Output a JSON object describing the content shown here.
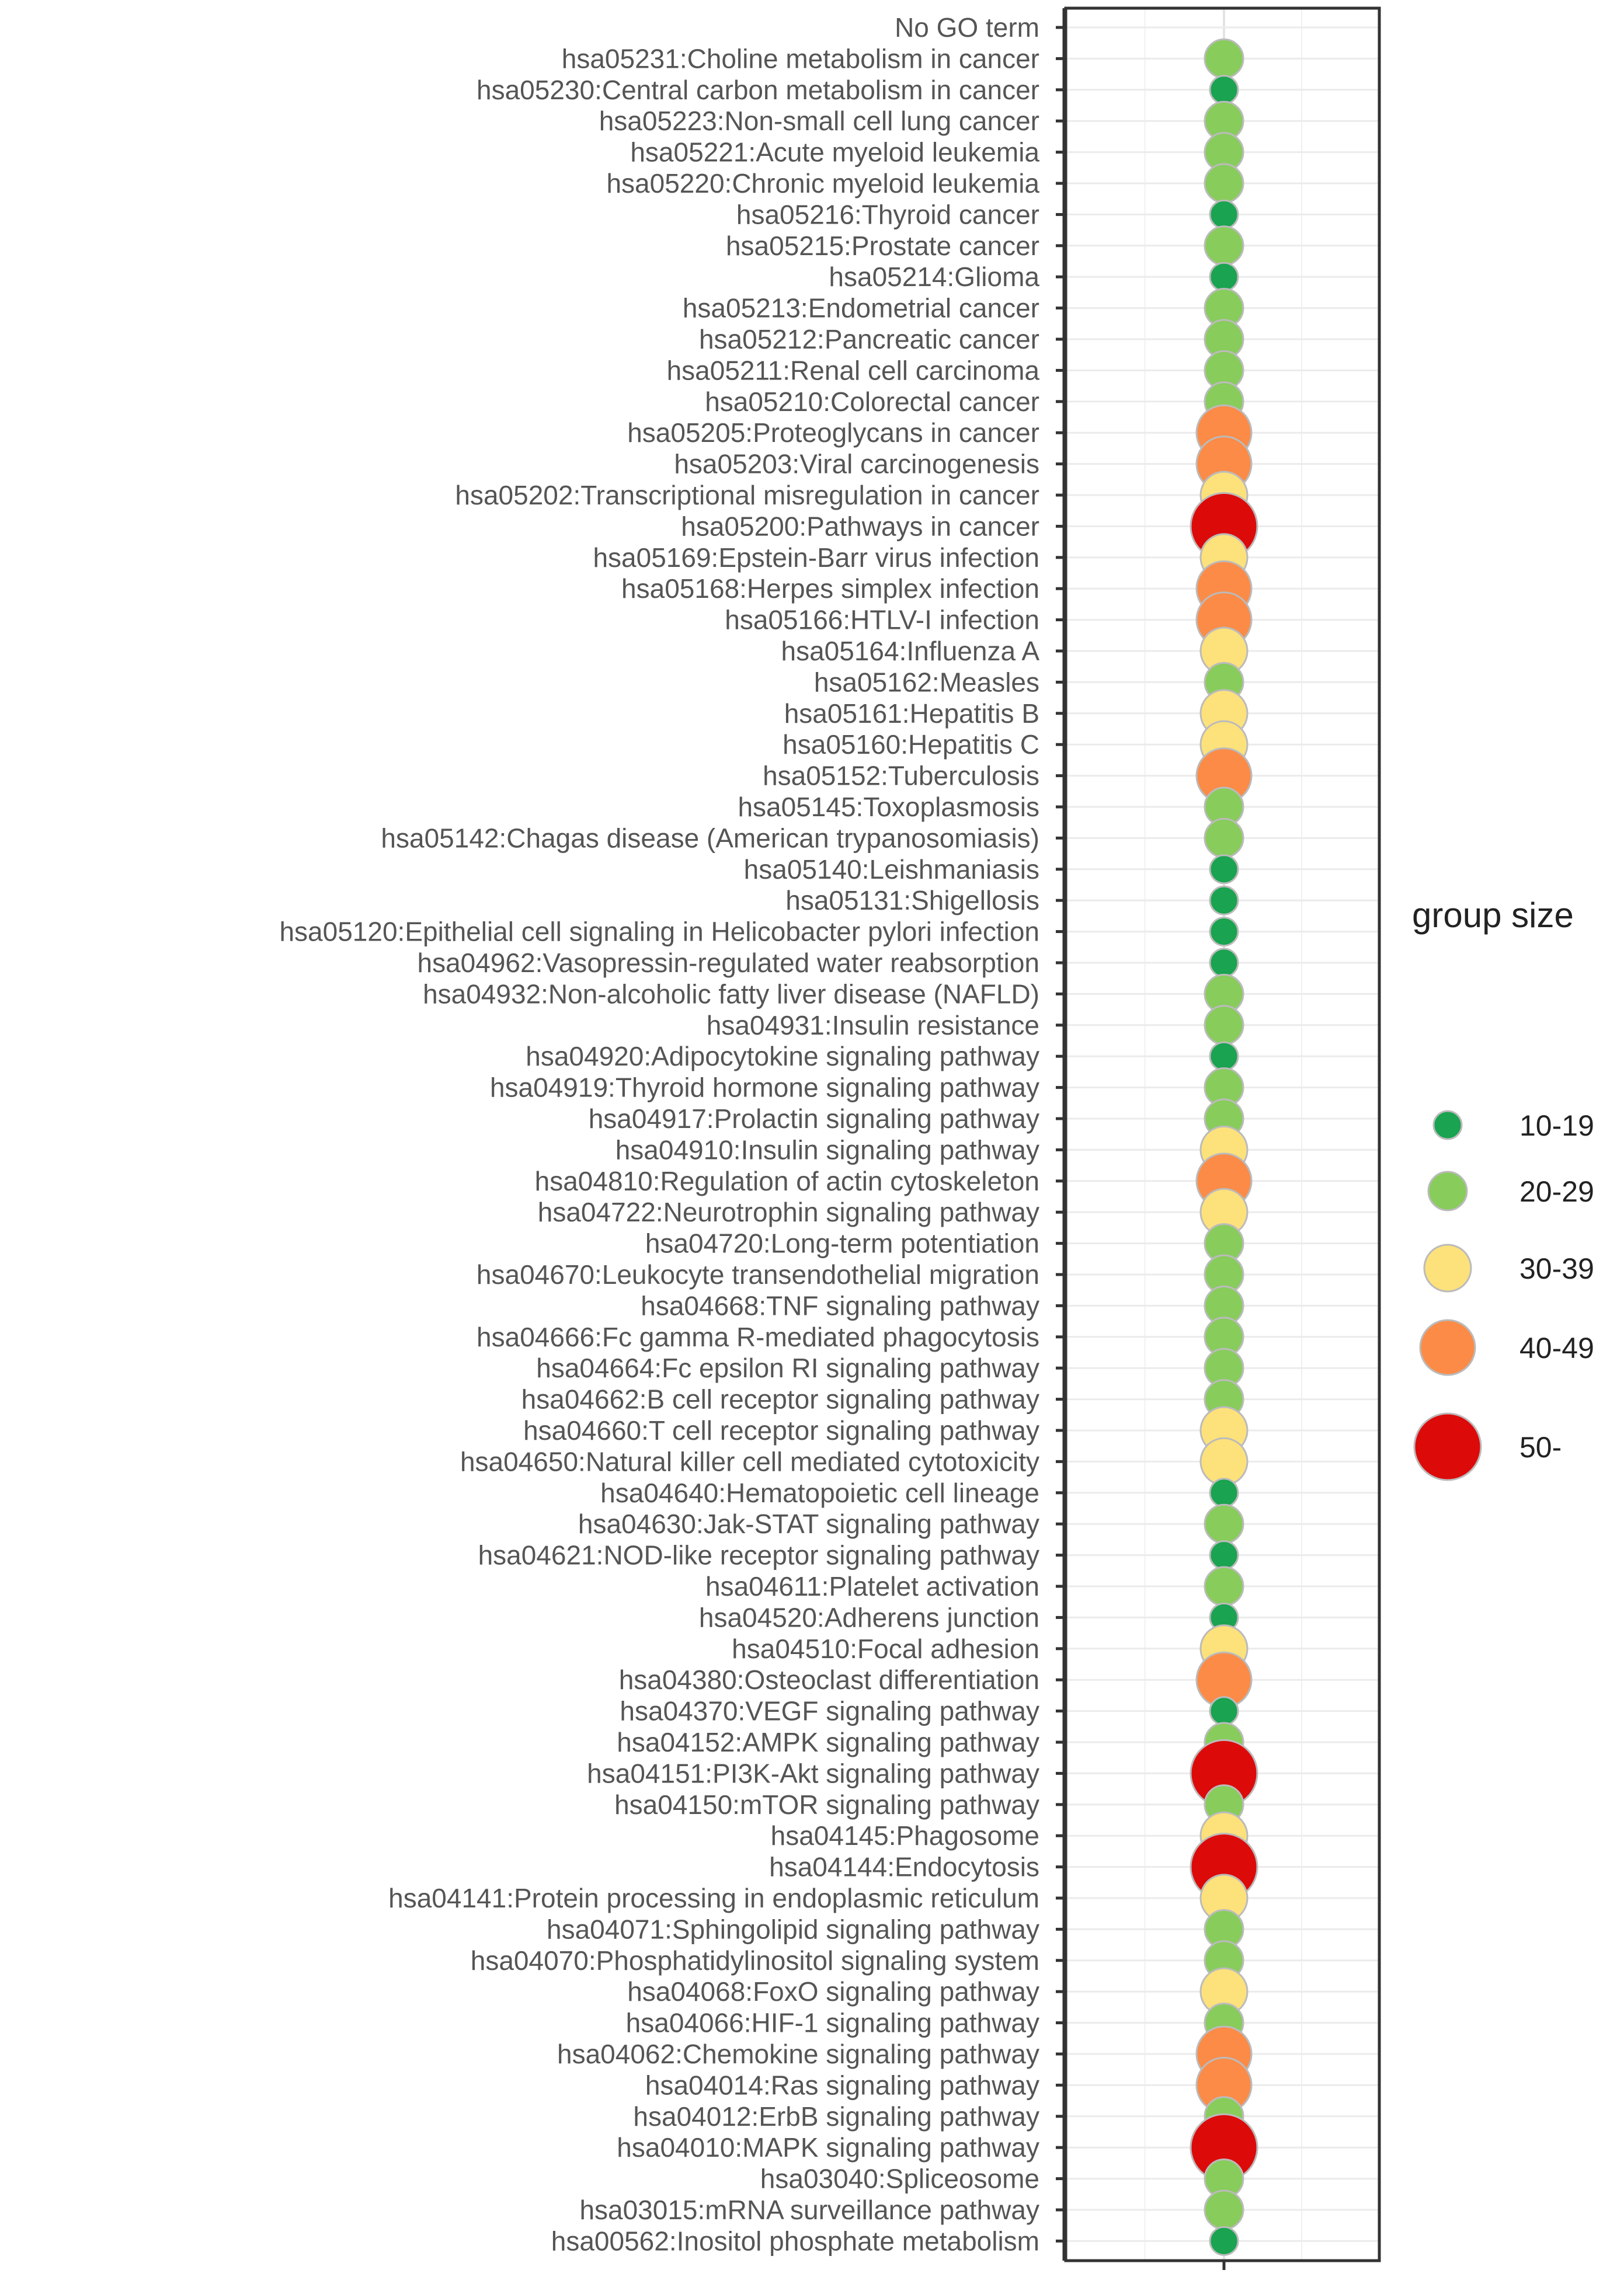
{
  "chart_data": {
    "type": "scatter",
    "title": "",
    "xlabel": "",
    "ylabel": "",
    "categories": [
      "No GO term",
      "hsa05231:Choline metabolism in cancer",
      "hsa05230:Central carbon metabolism in cancer",
      "hsa05223:Non-small cell lung cancer",
      "hsa05221:Acute myeloid leukemia",
      "hsa05220:Chronic myeloid leukemia",
      "hsa05216:Thyroid cancer",
      "hsa05215:Prostate cancer",
      "hsa05214:Glioma",
      "hsa05213:Endometrial cancer",
      "hsa05212:Pancreatic cancer",
      "hsa05211:Renal cell carcinoma",
      "hsa05210:Colorectal cancer",
      "hsa05205:Proteoglycans in cancer",
      "hsa05203:Viral carcinogenesis",
      "hsa05202:Transcriptional misregulation in cancer",
      "hsa05200:Pathways in cancer",
      "hsa05169:Epstein-Barr virus infection",
      "hsa05168:Herpes simplex infection",
      "hsa05166:HTLV-I infection",
      "hsa05164:Influenza A",
      "hsa05162:Measles",
      "hsa05161:Hepatitis B",
      "hsa05160:Hepatitis C",
      "hsa05152:Tuberculosis",
      "hsa05145:Toxoplasmosis",
      "hsa05142:Chagas disease (American trypanosomiasis)",
      "hsa05140:Leishmaniasis",
      "hsa05131:Shigellosis",
      "hsa05120:Epithelial cell signaling in Helicobacter pylori infection",
      "hsa04962:Vasopressin-regulated water reabsorption",
      "hsa04932:Non-alcoholic fatty liver disease (NAFLD)",
      "hsa04931:Insulin resistance",
      "hsa04920:Adipocytokine signaling pathway",
      "hsa04919:Thyroid hormone signaling pathway",
      "hsa04917:Prolactin signaling pathway",
      "hsa04910:Insulin signaling pathway",
      "hsa04810:Regulation of actin cytoskeleton",
      "hsa04722:Neurotrophin signaling pathway",
      "hsa04720:Long-term potentiation",
      "hsa04670:Leukocyte transendothelial migration",
      "hsa04668:TNF signaling pathway",
      "hsa04666:Fc gamma R-mediated phagocytosis",
      "hsa04664:Fc epsilon RI signaling pathway",
      "hsa04662:B cell receptor signaling pathway",
      "hsa04660:T cell receptor signaling pathway",
      "hsa04650:Natural killer cell mediated cytotoxicity",
      "hsa04640:Hematopoietic cell lineage",
      "hsa04630:Jak-STAT signaling pathway",
      "hsa04621:NOD-like receptor signaling pathway",
      "hsa04611:Platelet activation",
      "hsa04520:Adherens junction",
      "hsa04510:Focal adhesion",
      "hsa04380:Osteoclast differentiation",
      "hsa04370:VEGF signaling pathway",
      "hsa04152:AMPK signaling pathway",
      "hsa04151:PI3K-Akt signaling pathway",
      "hsa04150:mTOR signaling pathway",
      "hsa04145:Phagosome",
      "hsa04144:Endocytosis",
      "hsa04141:Protein processing in endoplasmic reticulum",
      "hsa04071:Sphingolipid signaling pathway",
      "hsa04070:Phosphatidylinositol signaling system",
      "hsa04068:FoxO signaling pathway",
      "hsa04066:HIF-1 signaling pathway",
      "hsa04062:Chemokine signaling pathway",
      "hsa04014:Ras signaling pathway",
      "hsa04012:ErbB signaling pathway",
      "hsa04010:MAPK signaling pathway",
      "hsa03040:Spliceosome",
      "hsa03015:mRNA surveillance pathway",
      "hsa00562:Inositol phosphate metabolism"
    ],
    "group_size": [
      null,
      "20-29",
      "10-19",
      "20-29",
      "20-29",
      "20-29",
      "10-19",
      "20-29",
      "10-19",
      "20-29",
      "20-29",
      "20-29",
      "20-29",
      "40-49",
      "40-49",
      "30-39",
      "50-",
      "30-39",
      "40-49",
      "40-49",
      "30-39",
      "20-29",
      "30-39",
      "30-39",
      "40-49",
      "20-29",
      "20-29",
      "10-19",
      "10-19",
      "10-19",
      "10-19",
      "20-29",
      "20-29",
      "10-19",
      "20-29",
      "20-29",
      "30-39",
      "40-49",
      "30-39",
      "20-29",
      "20-29",
      "20-29",
      "20-29",
      "20-29",
      "20-29",
      "30-39",
      "30-39",
      "10-19",
      "20-29",
      "10-19",
      "20-29",
      "10-19",
      "30-39",
      "40-49",
      "10-19",
      "20-29",
      "50-",
      "20-29",
      "30-39",
      "50-",
      "30-39",
      "20-29",
      "20-29",
      "30-39",
      "20-29",
      "40-49",
      "40-49",
      "20-29",
      "50-",
      "20-29",
      "20-29",
      "10-19"
    ],
    "legend": {
      "title": "group size",
      "position": "right",
      "entries": [
        {
          "label": "10-19",
          "color": "#1aa350"
        },
        {
          "label": "20-29",
          "color": "#88cc5c"
        },
        {
          "label": "30-39",
          "color": "#fde17b"
        },
        {
          "label": "40-49",
          "color": "#fb8b47"
        },
        {
          "label": "50-",
          "color": "#dd0a0a"
        }
      ]
    },
    "grid": true,
    "panel_border": true
  }
}
